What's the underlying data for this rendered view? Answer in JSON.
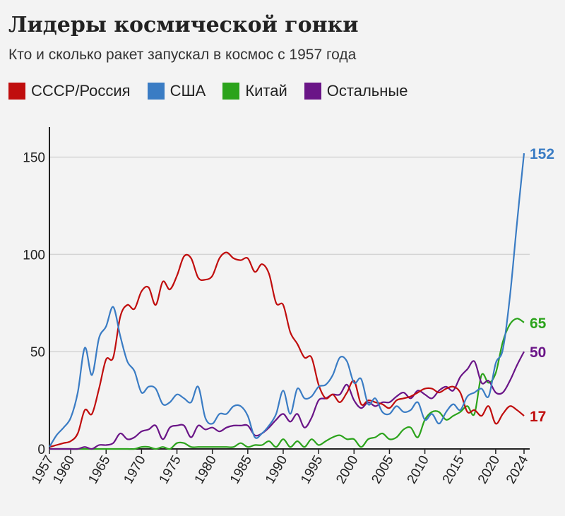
{
  "chart_data": {
    "type": "line",
    "title": "Лидеры космической гонки",
    "subtitle": "Кто и сколько ракет запускал в космос с 1957 года",
    "xlim": [
      1957,
      2024
    ],
    "ylim": [
      0,
      160
    ],
    "y_ticks": [
      0,
      50,
      100,
      150
    ],
    "x_ticks": [
      1957,
      1960,
      1965,
      1970,
      1975,
      1980,
      1985,
      1990,
      1995,
      2000,
      2005,
      2010,
      2015,
      2020,
      2024
    ],
    "grid": "horizontal",
    "legend_position": "top",
    "series": [
      {
        "name": "СССР/Россия",
        "color": "#c00d0d",
        "end_label": "17",
        "x": [
          1957,
          1958,
          1959,
          1960,
          1961,
          1962,
          1963,
          1964,
          1965,
          1966,
          1967,
          1968,
          1969,
          1970,
          1971,
          1972,
          1973,
          1974,
          1975,
          1976,
          1977,
          1978,
          1979,
          1980,
          1981,
          1982,
          1983,
          1984,
          1985,
          1986,
          1987,
          1988,
          1989,
          1990,
          1991,
          1992,
          1993,
          1994,
          1995,
          1996,
          1997,
          1998,
          1999,
          2000,
          2001,
          2002,
          2003,
          2004,
          2005,
          2006,
          2007,
          2008,
          2009,
          2010,
          2011,
          2012,
          2013,
          2014,
          2015,
          2016,
          2017,
          2018,
          2019,
          2020,
          2021,
          2022,
          2023,
          2024
        ],
        "y": [
          1,
          2,
          3,
          4,
          8,
          20,
          18,
          31,
          46,
          47,
          68,
          74,
          72,
          81,
          83,
          74,
          86,
          82,
          89,
          99,
          98,
          88,
          87,
          89,
          98,
          101,
          98,
          97,
          98,
          91,
          95,
          90,
          75,
          74,
          60,
          54,
          47,
          47,
          33,
          26,
          28,
          24,
          29,
          35,
          23,
          25,
          24,
          23,
          21,
          25,
          26,
          27,
          29,
          31,
          31,
          29,
          31,
          32,
          29,
          19,
          20,
          17,
          22,
          13,
          18,
          22,
          20,
          17
        ]
      },
      {
        "name": "США",
        "color": "#3a7cc4",
        "end_label": "152",
        "x": [
          1957,
          1958,
          1959,
          1960,
          1961,
          1962,
          1963,
          1964,
          1965,
          1966,
          1967,
          1968,
          1969,
          1970,
          1971,
          1972,
          1973,
          1974,
          1975,
          1976,
          1977,
          1978,
          1979,
          1980,
          1981,
          1982,
          1983,
          1984,
          1985,
          1986,
          1987,
          1988,
          1989,
          1990,
          1991,
          1992,
          1993,
          1994,
          1995,
          1996,
          1997,
          1998,
          1999,
          2000,
          2001,
          2002,
          2003,
          2004,
          2005,
          2006,
          2007,
          2008,
          2009,
          2010,
          2011,
          2012,
          2013,
          2014,
          2015,
          2016,
          2017,
          2018,
          2019,
          2020,
          2021,
          2022,
          2023,
          2024
        ],
        "y": [
          1,
          7,
          11,
          16,
          29,
          52,
          38,
          57,
          63,
          73,
          58,
          45,
          40,
          29,
          32,
          31,
          23,
          24,
          28,
          26,
          24,
          32,
          16,
          13,
          18,
          18,
          22,
          22,
          17,
          6,
          8,
          12,
          18,
          30,
          18,
          31,
          26,
          27,
          32,
          33,
          38,
          47,
          45,
          34,
          36,
          23,
          26,
          19,
          18,
          22,
          19,
          20,
          24,
          15,
          18,
          13,
          19,
          23,
          20,
          27,
          29,
          31,
          27,
          44,
          51,
          78,
          116,
          152
        ]
      },
      {
        "name": "Китай",
        "color": "#2ba31b",
        "end_label": "65",
        "x": [
          1957,
          1958,
          1959,
          1960,
          1961,
          1962,
          1963,
          1964,
          1965,
          1966,
          1967,
          1968,
          1969,
          1970,
          1971,
          1972,
          1973,
          1974,
          1975,
          1976,
          1977,
          1978,
          1979,
          1980,
          1981,
          1982,
          1983,
          1984,
          1985,
          1986,
          1987,
          1988,
          1989,
          1990,
          1991,
          1992,
          1993,
          1994,
          1995,
          1996,
          1997,
          1998,
          1999,
          2000,
          2001,
          2002,
          2003,
          2004,
          2005,
          2006,
          2007,
          2008,
          2009,
          2010,
          2011,
          2012,
          2013,
          2014,
          2015,
          2016,
          2017,
          2018,
          2019,
          2020,
          2021,
          2022,
          2023,
          2024
        ],
        "y": [
          0,
          0,
          0,
          0,
          0,
          0,
          0,
          0,
          0,
          0,
          0,
          0,
          0,
          1,
          1,
          0,
          1,
          0,
          3,
          3,
          1,
          1,
          1,
          1,
          1,
          1,
          1,
          3,
          1,
          2,
          2,
          4,
          1,
          5,
          1,
          4,
          1,
          5,
          2,
          4,
          6,
          7,
          5,
          5,
          1,
          5,
          6,
          8,
          5,
          6,
          10,
          11,
          6,
          15,
          19,
          19,
          15,
          17,
          19,
          22,
          18,
          38,
          34,
          39,
          55,
          64,
          67,
          65
        ]
      },
      {
        "name": "Остальные",
        "color": "#6a1587",
        "end_label": "50",
        "x": [
          1957,
          1958,
          1959,
          1960,
          1961,
          1962,
          1963,
          1964,
          1965,
          1966,
          1967,
          1968,
          1969,
          1970,
          1971,
          1972,
          1973,
          1974,
          1975,
          1976,
          1977,
          1978,
          1979,
          1980,
          1981,
          1982,
          1983,
          1984,
          1985,
          1986,
          1987,
          1988,
          1989,
          1990,
          1991,
          1992,
          1993,
          1994,
          1995,
          1996,
          1997,
          1998,
          1999,
          2000,
          2001,
          2002,
          2003,
          2004,
          2005,
          2006,
          2007,
          2008,
          2009,
          2010,
          2011,
          2012,
          2013,
          2014,
          2015,
          2016,
          2017,
          2018,
          2019,
          2020,
          2021,
          2022,
          2023,
          2024
        ],
        "y": [
          0,
          0,
          0,
          0,
          0,
          1,
          0,
          2,
          2,
          3,
          8,
          5,
          6,
          9,
          10,
          12,
          5,
          11,
          12,
          12,
          6,
          12,
          10,
          11,
          9,
          11,
          12,
          12,
          12,
          7,
          8,
          11,
          15,
          18,
          14,
          18,
          11,
          16,
          25,
          26,
          28,
          28,
          33,
          25,
          21,
          24,
          22,
          24,
          24,
          27,
          29,
          26,
          30,
          28,
          26,
          30,
          32,
          30,
          37,
          41,
          45,
          34,
          35,
          29,
          29,
          35,
          43,
          50
        ]
      }
    ]
  }
}
